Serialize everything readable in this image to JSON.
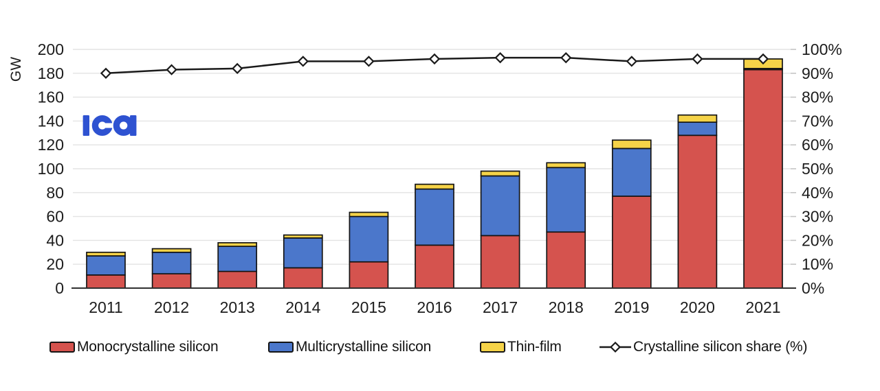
{
  "theme": {
    "background": "#ffffff",
    "grid_color": "#e3e3e3",
    "axis_color": "#2f2f2f",
    "right_tick_color": "#c4c4c4",
    "bar_border_color": "#141414",
    "text_color": "#1c1c1c"
  },
  "logo": {
    "text": "iea",
    "color": "#2e52d1"
  },
  "chart_data": {
    "type": "combo-stacked-bar-line",
    "title": "",
    "categories": [
      "2011",
      "2012",
      "2013",
      "2014",
      "2015",
      "2016",
      "2017",
      "2018",
      "2019",
      "2020",
      "2021"
    ],
    "series": [
      {
        "key": "monocrystalline",
        "name": "Monocrystalline silicon",
        "type": "bar",
        "axis": "left",
        "color": "#d5534e",
        "values": [
          11,
          12,
          14,
          17,
          22,
          36,
          44,
          47,
          77,
          128,
          183
        ]
      },
      {
        "key": "multicrystalline",
        "name": "Multicrystalline silicon",
        "type": "bar",
        "axis": "left",
        "color": "#4b77cb",
        "values": [
          16,
          18,
          21,
          25,
          38,
          47,
          50,
          54,
          40,
          11,
          1
        ]
      },
      {
        "key": "thin-film",
        "name": "Thin-film",
        "type": "bar",
        "axis": "left",
        "color": "#f5d348",
        "values": [
          3,
          3,
          3,
          2.5,
          3.5,
          4,
          4,
          4,
          7,
          6,
          8
        ]
      },
      {
        "key": "crystalline-share",
        "name": "Crystalline silicon share (%)",
        "type": "line",
        "axis": "right",
        "color": "#1a1a1a",
        "marker": "diamond",
        "values": [
          90,
          91.5,
          92,
          95,
          95,
          96,
          96.5,
          96.5,
          95,
          96,
          96
        ]
      }
    ],
    "left_axis": {
      "label": "GW",
      "min": 0,
      "max": 200,
      "step": 20,
      "ticks": [
        "0",
        "20",
        "40",
        "60",
        "80",
        "100",
        "120",
        "140",
        "160",
        "180",
        "200"
      ]
    },
    "right_axis": {
      "label": "",
      "min": 0,
      "max": 100,
      "step": 10,
      "ticks": [
        "0%",
        "10%",
        "20%",
        "30%",
        "40%",
        "50%",
        "60%",
        "70%",
        "80%",
        "90%",
        "100%"
      ]
    },
    "grid": true,
    "legend_position": "bottom",
    "stacked": true
  }
}
